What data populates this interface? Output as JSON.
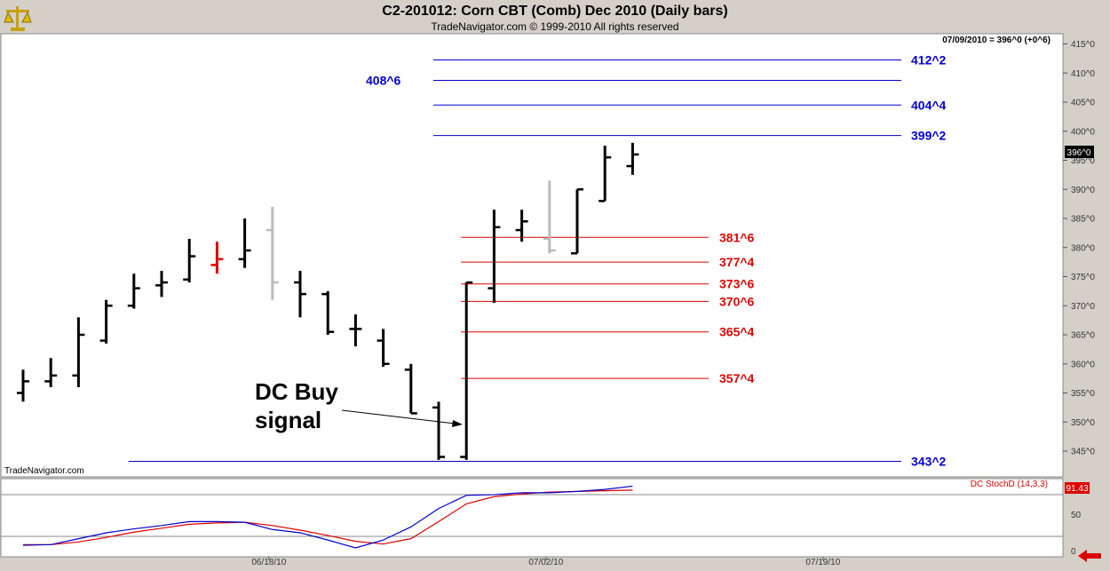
{
  "header": {
    "title": "C2-201012:  Corn CBT (Comb) Dec 2010  (Daily bars)",
    "subtitle": "TradeNavigator.com © 1999-2010 All rights reserved"
  },
  "watermark": "TradeNavigator.com",
  "last_price_info": "07/09/2010 = 396^0 (+0^6)",
  "last_price_tag": "396^0",
  "annotation": [
    "DC Buy",
    "signal"
  ],
  "indicator": {
    "label": "DC StochD (14,3,3)",
    "value_tag": "91.43",
    "ylim": [
      0,
      100
    ],
    "yticks": [
      "50",
      "0"
    ],
    "levels": [
      80,
      20
    ]
  },
  "colors": {
    "bar_black": "#000000",
    "bar_red": "#dd0000",
    "bar_gray": "#bbbbbb",
    "level_blue": "#0000cc",
    "level_red": "#dd0000",
    "stoch_blue": "#0000cc",
    "stoch_red": "#dd0000"
  },
  "chart_data": {
    "type": "ohlc",
    "ylim": [
      341,
      416
    ],
    "yticks": [
      345,
      350,
      355,
      360,
      365,
      370,
      375,
      380,
      385,
      390,
      395,
      400,
      405,
      410,
      415
    ],
    "ytick_labels": [
      "345^0",
      "350^0",
      "355^0",
      "360^0",
      "365^0",
      "370^0",
      "375^0",
      "380^0",
      "385^0",
      "390^0",
      "395^0",
      "400^0",
      "405^0",
      "410^0",
      "415^0"
    ],
    "xticks": [
      {
        "label": "06/18/10",
        "index": 9
      },
      {
        "label": "07/02/10",
        "index": 19
      },
      {
        "label": "07/19/10",
        "index": 29
      }
    ],
    "bars": [
      {
        "o": 355,
        "h": 359,
        "l": 353.5,
        "c": 357,
        "color": "black"
      },
      {
        "o": 357,
        "h": 361,
        "l": 356,
        "c": 358,
        "color": "black"
      },
      {
        "o": 358,
        "h": 368,
        "l": 356,
        "c": 365,
        "color": "black"
      },
      {
        "o": 364,
        "h": 371,
        "l": 363.5,
        "c": 370,
        "color": "black"
      },
      {
        "o": 370,
        "h": 375.5,
        "l": 369.5,
        "c": 373,
        "color": "black"
      },
      {
        "o": 373.5,
        "h": 376,
        "l": 371.5,
        "c": 374,
        "color": "black"
      },
      {
        "o": 374.5,
        "h": 381.5,
        "l": 374,
        "c": 378.5,
        "color": "black"
      },
      {
        "o": 377,
        "h": 381,
        "l": 375.5,
        "c": 378,
        "color": "red"
      },
      {
        "o": 378,
        "h": 385,
        "l": 376.5,
        "c": 379.5,
        "color": "black"
      },
      {
        "o": 383,
        "h": 387,
        "l": 371,
        "c": 374,
        "color": "gray"
      },
      {
        "o": 374,
        "h": 376,
        "l": 368,
        "c": 372,
        "color": "black"
      },
      {
        "o": 372,
        "h": 372.5,
        "l": 365,
        "c": 365.5,
        "color": "black"
      },
      {
        "o": 366,
        "h": 368.5,
        "l": 363,
        "c": 366,
        "color": "black"
      },
      {
        "o": 364,
        "h": 366,
        "l": 359.5,
        "c": 360,
        "color": "black"
      },
      {
        "o": 359,
        "h": 360,
        "l": 351.5,
        "c": 351.5,
        "color": "black"
      },
      {
        "o": 352.5,
        "h": 353.5,
        "l": 343.5,
        "c": 344,
        "color": "black"
      },
      {
        "o": 344,
        "h": 374,
        "l": 343.5,
        "c": 374,
        "color": "black"
      },
      {
        "o": 373,
        "h": 386.5,
        "l": 370.5,
        "c": 383.5,
        "color": "black"
      },
      {
        "o": 383,
        "h": 386.5,
        "l": 381,
        "c": 384.5,
        "color": "black"
      },
      {
        "o": 381.5,
        "h": 391.5,
        "l": 379,
        "c": 379.5,
        "color": "gray"
      },
      {
        "o": 379,
        "h": 390,
        "l": 379,
        "c": 390,
        "color": "black"
      },
      {
        "o": 388,
        "h": 397.5,
        "l": 388,
        "c": 395.5,
        "color": "black"
      },
      {
        "o": 394,
        "h": 398,
        "l": 392.5,
        "c": 396,
        "color": "black"
      }
    ],
    "levels": [
      {
        "value": 412.25,
        "label": "412^2",
        "color": "blue",
        "x_start": 15,
        "label_side": "right"
      },
      {
        "value": 408.75,
        "label": "408^6",
        "color": "blue",
        "x_start": 15,
        "label_side": "left"
      },
      {
        "value": 404.5,
        "label": "404^4",
        "color": "blue",
        "x_start": 15,
        "label_side": "right"
      },
      {
        "value": 399.25,
        "label": "399^2",
        "color": "blue",
        "x_start": 15,
        "label_side": "right"
      },
      {
        "value": 381.75,
        "label": "381^6",
        "color": "red",
        "x_start": 16,
        "label_side": "right"
      },
      {
        "value": 377.5,
        "label": "377^4",
        "color": "red",
        "x_start": 16,
        "label_side": "right"
      },
      {
        "value": 373.75,
        "label": "373^6",
        "color": "red",
        "x_start": 16,
        "label_side": "right"
      },
      {
        "value": 370.75,
        "label": "370^6",
        "color": "red",
        "x_start": 16,
        "label_side": "right"
      },
      {
        "value": 365.5,
        "label": "365^4",
        "color": "red",
        "x_start": 16,
        "label_side": "right"
      },
      {
        "value": 357.5,
        "label": "357^4",
        "color": "red",
        "x_start": 16,
        "label_side": "right"
      },
      {
        "value": 343.25,
        "label": "343^2",
        "color": "blue",
        "x_start": 4,
        "label_side": "right"
      }
    ],
    "stoch": {
      "blue": [
        4,
        5,
        14,
        23,
        29,
        34,
        40,
        40,
        39,
        28,
        23,
        12,
        0,
        12,
        32,
        60,
        80,
        81,
        84,
        84,
        86,
        89,
        94
      ],
      "red": [
        5,
        5,
        9,
        16,
        24,
        30,
        36,
        38,
        39,
        34,
        27,
        19,
        10,
        6,
        14,
        40,
        67,
        78,
        82,
        85,
        86,
        87,
        88
      ]
    }
  }
}
